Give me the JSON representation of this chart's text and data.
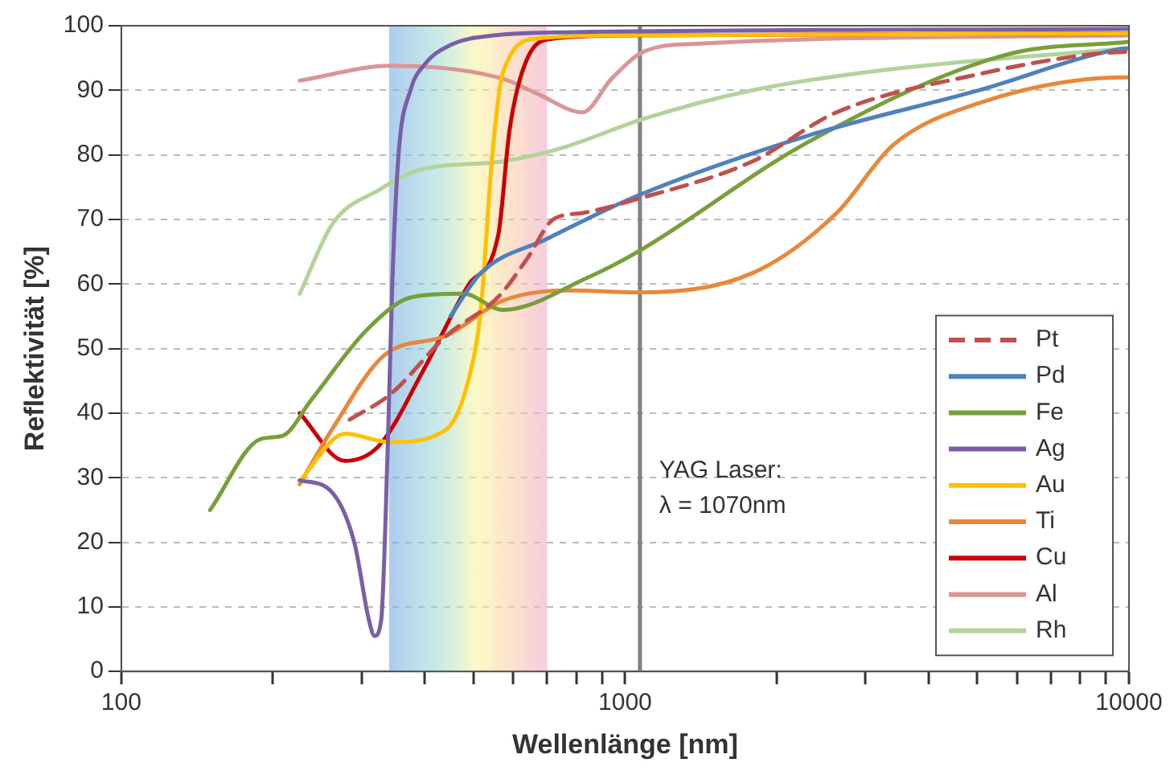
{
  "chart_data": {
    "type": "line",
    "xlabel": "Wellenlänge [nm]",
    "ylabel": "Reflektivität [%]",
    "log": "x",
    "xlim": [
      100,
      10000
    ],
    "ylim": [
      0,
      100
    ],
    "xticks": [
      100,
      {
        "value": 200,
        "label": null
      },
      {
        "value": 300,
        "label": null
      },
      {
        "value": 400,
        "label": null
      },
      {
        "value": 500,
        "label": null
      },
      {
        "value": 600,
        "label": null
      },
      {
        "value": 700,
        "label": null
      },
      {
        "value": 800,
        "label": null
      },
      {
        "value": 900,
        "label": null
      },
      1000,
      {
        "value": 2000,
        "label": null
      },
      {
        "value": 3000,
        "label": null
      },
      {
        "value": 4000,
        "label": null
      },
      {
        "value": 5000,
        "label": null
      },
      {
        "value": 6000,
        "label": null
      },
      {
        "value": 7000,
        "label": null
      },
      {
        "value": 8000,
        "label": null
      },
      {
        "value": 9000,
        "label": null
      },
      10000
    ],
    "yticks": [
      0,
      10,
      20,
      30,
      40,
      50,
      60,
      70,
      80,
      90,
      100
    ],
    "grid": "y",
    "legend": "bottom right",
    "marker": "none",
    "bands": [
      {
        "axis": "x",
        "from": 340,
        "to": 700
      }
    ],
    "ref_lines": [
      {
        "axis": "x",
        "value": 1070,
        "label": "YAG Laser:\nλ = 1070nm",
        "color": "#808080"
      }
    ],
    "series": [
      {
        "name": "Pt",
        "color": "#c0504d",
        "line_style": "dashed",
        "x": [
          284,
          343,
          442,
          560,
          640,
          720,
          824,
          1040,
          1790,
          2630,
          5030,
          8430,
          10000
        ],
        "values": [
          39,
          43,
          52,
          58,
          64,
          70,
          71,
          73,
          79,
          86.6,
          92.5,
          95.6,
          96
        ]
      },
      {
        "name": "Pd",
        "color": "#4f81bd",
        "x": [
          450,
          517,
          700,
          1060,
          2310,
          5030,
          9600,
          10000
        ],
        "values": [
          55,
          61.7,
          67,
          73.7,
          83,
          90,
          96.4,
          96.5
        ]
      },
      {
        "name": "Fe",
        "color": "#77a03a",
        "x": [
          150,
          189,
          209,
          238,
          308,
          379,
          478,
          571,
          843,
          1060,
          2310,
          5700,
          10000
        ],
        "values": [
          25,
          36,
          36.5,
          42,
          53,
          58,
          58.5,
          56,
          61,
          65,
          82,
          95.5,
          97.5
        ]
      },
      {
        "name": "Ag",
        "color": "#7a5ea8",
        "x": [
          226,
          260,
          290,
          310,
          318,
          328,
          338,
          345,
          355,
          375,
          400,
          450,
          550,
          800,
          10000
        ],
        "values": [
          29.6,
          28,
          20,
          8,
          5.5,
          8,
          35,
          60,
          80,
          90,
          94,
          97,
          98.5,
          99,
          99.5
        ]
      },
      {
        "name": "Au",
        "color": "#ffc000",
        "x": [
          226,
          278,
          343,
          442,
          490,
          517,
          545,
          571,
          668,
          1000,
          10000
        ],
        "values": [
          29.5,
          36.8,
          35.5,
          37.5,
          45.5,
          56,
          80,
          92.5,
          98,
          98.5,
          98.8
        ]
      },
      {
        "name": "Ti",
        "color": "#e8883a",
        "x": [
          226,
          263,
          333,
          442,
          571,
          780,
          1060,
          1790,
          2630,
          3400,
          5030,
          9800,
          10000
        ],
        "values": [
          29,
          37.7,
          49,
          52,
          57.4,
          59,
          58.7,
          61.7,
          71,
          81.5,
          88,
          92,
          92
        ]
      },
      {
        "name": "Cu",
        "color": "#cc0000",
        "x": [
          226,
          278,
          325,
          400,
          490,
          560,
          590,
          640,
          720,
          1000,
          10000
        ],
        "values": [
          40,
          32.6,
          35,
          47,
          60,
          67.6,
          84,
          95,
          98,
          98.5,
          98.8
        ]
      },
      {
        "name": "Al",
        "color": "#d99694",
        "x": [
          226,
          343,
          571,
          668,
          823,
          940,
          1090,
          1380,
          10000
        ],
        "values": [
          91.5,
          93.8,
          91.8,
          89.5,
          86.6,
          91.8,
          96,
          97.2,
          98.5
        ]
      },
      {
        "name": "Rh",
        "color": "#b3d39a",
        "x": [
          226,
          263,
          325,
          388,
          571,
          744,
          1090,
          1790,
          3400,
          10000
        ],
        "values": [
          58.5,
          69.4,
          74.6,
          77.6,
          79,
          81,
          85.6,
          90,
          93.3,
          96.5
        ]
      }
    ]
  }
}
